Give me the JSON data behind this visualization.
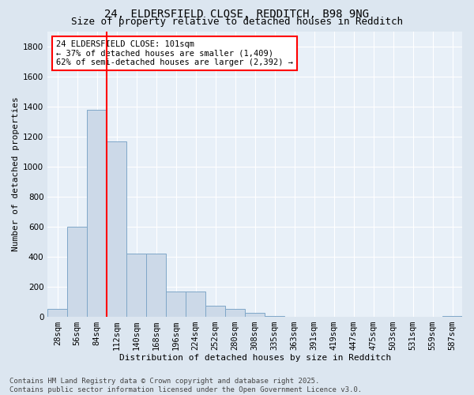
{
  "title1": "24, ELDERSFIELD CLOSE, REDDITCH, B98 9NG",
  "title2": "Size of property relative to detached houses in Redditch",
  "xlabel": "Distribution of detached houses by size in Redditch",
  "ylabel": "Number of detached properties",
  "annotation_line1": "24 ELDERSFIELD CLOSE: 101sqm",
  "annotation_line2": "← 37% of detached houses are smaller (1,409)",
  "annotation_line3": "62% of semi-detached houses are larger (2,392) →",
  "footer1": "Contains HM Land Registry data © Crown copyright and database right 2025.",
  "footer2": "Contains public sector information licensed under the Open Government Licence v3.0.",
  "bin_labels": [
    "28sqm",
    "56sqm",
    "84sqm",
    "112sqm",
    "140sqm",
    "168sqm",
    "196sqm",
    "224sqm",
    "252sqm",
    "280sqm",
    "308sqm",
    "335sqm",
    "363sqm",
    "391sqm",
    "419sqm",
    "447sqm",
    "475sqm",
    "503sqm",
    "531sqm",
    "559sqm",
    "587sqm"
  ],
  "bar_values": [
    50,
    600,
    1380,
    1170,
    420,
    420,
    170,
    170,
    75,
    50,
    25,
    5,
    0,
    0,
    0,
    0,
    0,
    0,
    0,
    0,
    5
  ],
  "bar_color": "#ccd9e8",
  "bar_edgecolor": "#7fa7c8",
  "ylim": [
    0,
    1900
  ],
  "yticks": [
    0,
    200,
    400,
    600,
    800,
    1000,
    1200,
    1400,
    1600,
    1800
  ],
  "background_color": "#dce6f0",
  "plot_bg_color": "#e8f0f8",
  "grid_color": "#ffffff",
  "title_fontsize": 10,
  "subtitle_fontsize": 9,
  "annotation_fontsize": 7.5,
  "axis_fontsize": 7.5,
  "ylabel_fontsize": 8,
  "xlabel_fontsize": 8,
  "footer_fontsize": 6.5
}
